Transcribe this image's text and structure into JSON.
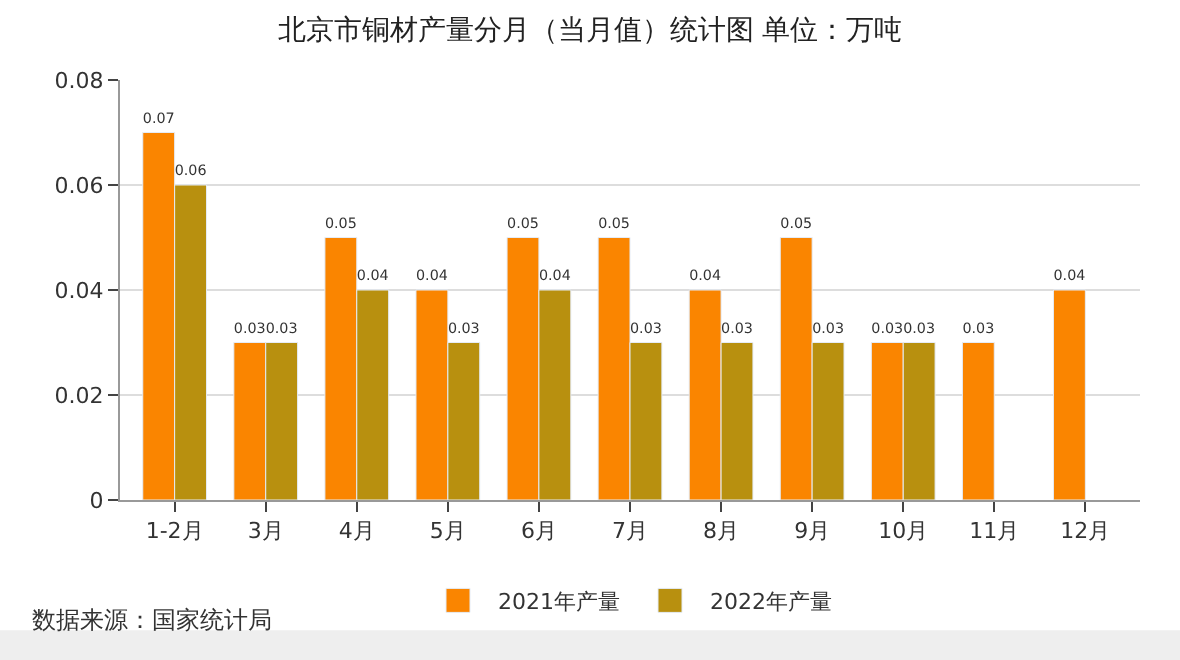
{
  "chart_data": {
    "type": "bar",
    "title": "北京市铜材产量分月（当月值）统计图 单位：万吨",
    "categories": [
      "1-2月",
      "3月",
      "4月",
      "5月",
      "6月",
      "7月",
      "8月",
      "9月",
      "10月",
      "11月",
      "12月"
    ],
    "series": [
      {
        "name": "2021年产量",
        "color": "#fa8500",
        "values": [
          0.07,
          0.03,
          0.05,
          0.04,
          0.05,
          0.05,
          0.04,
          0.05,
          0.03,
          0.03,
          0.04
        ]
      },
      {
        "name": "2022年产量",
        "color": "#b8900f",
        "values": [
          0.06,
          0.03,
          0.04,
          0.03,
          0.04,
          0.03,
          0.03,
          0.03,
          0.03,
          null,
          null
        ]
      }
    ],
    "ylim": [
      0,
      0.08
    ],
    "yticks": [
      0,
      0.02,
      0.04,
      0.06,
      0.08
    ],
    "grid": "y",
    "legend": "bottom",
    "data_labels": true,
    "annotations": [
      "数据来源：国家统计局"
    ]
  }
}
